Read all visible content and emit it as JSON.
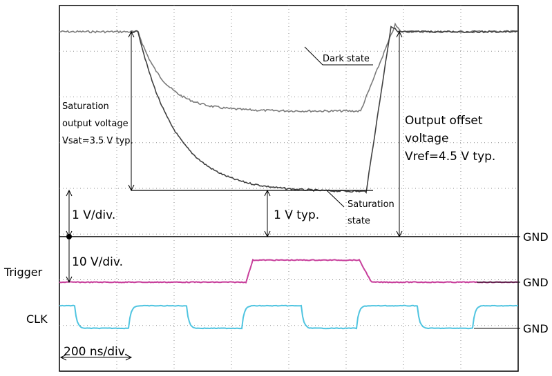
{
  "chart_data": {
    "type": "line",
    "traces": [
      {
        "name": "Dark state",
        "color": "#7a7a7a"
      },
      {
        "name": "Saturation state",
        "color": "#404040"
      },
      {
        "name": "Trigger",
        "color": "#c8409c"
      },
      {
        "name": "CLK",
        "color": "#4fc4e0"
      }
    ],
    "scales": {
      "output": "1 V/div.",
      "trigger_clk": "10 V/div.",
      "time": "200 ns/div."
    },
    "annotations": {
      "sat_output_1": "Saturation",
      "sat_output_2": "output voltage",
      "sat_output_3": "Vsat=3.5 V typ.",
      "offset_1": "Output offset",
      "offset_2": "voltage",
      "offset_3": "Vref=4.5 V typ.",
      "one_v_typ": "1 V typ.",
      "dark_state": "Dark state",
      "saturation_1": "Saturation",
      "saturation_2": "state"
    },
    "ground_label": "GND",
    "channel_labels": {
      "trigger": "Trigger",
      "clk": "CLK"
    },
    "grid": true
  }
}
